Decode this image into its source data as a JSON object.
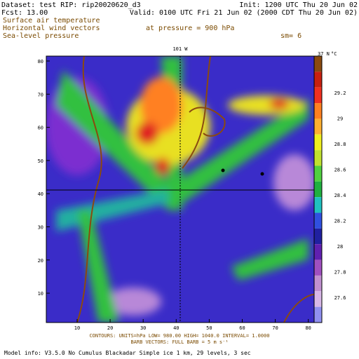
{
  "header": {
    "dataset": "Dataset: test   RIP: rip20020620_d3",
    "init": "Init: 1200 UTC Thu 20 Jun 02",
    "fcst": "Fcst:     13.00",
    "valid": "Valid: 0100 UTC Fri 21 Jun 02 (2000 CDT Thu 20 Jun 02)",
    "fields": [
      "Surface air temperature",
      "Horizontal wind vectors",
      "Sea-level pressure"
    ],
    "pressure": "at pressure =  900 hPa",
    "smooth": "sm= 6"
  },
  "map": {
    "lon_label": "101 W",
    "lat_label": "37 N",
    "unit": "°C",
    "xticks": [
      "10",
      "20",
      "30",
      "40",
      "50",
      "60",
      "70",
      "80"
    ],
    "yticks": [
      "80",
      "70",
      "60",
      "50",
      "40",
      "30",
      "20",
      "10"
    ],
    "colorbar": [
      "29.2",
      "29",
      "28.8",
      "28.6",
      "28.4",
      "28.2",
      "28",
      "27.8",
      "27.6"
    ]
  },
  "footer": {
    "contours": "CONTOURS:  UNITS=hPa   LOW=  980.00      HIGH= 1040.0      INTERVAL=    1.0000",
    "barbs": "BARB VECTORS:  FULL BARB = 5 m s⁻¹",
    "model": "Model info: V3.5.0  No Cumulus  Blackadar  Simple ice     1 km,   29 levels,     3 sec"
  }
}
